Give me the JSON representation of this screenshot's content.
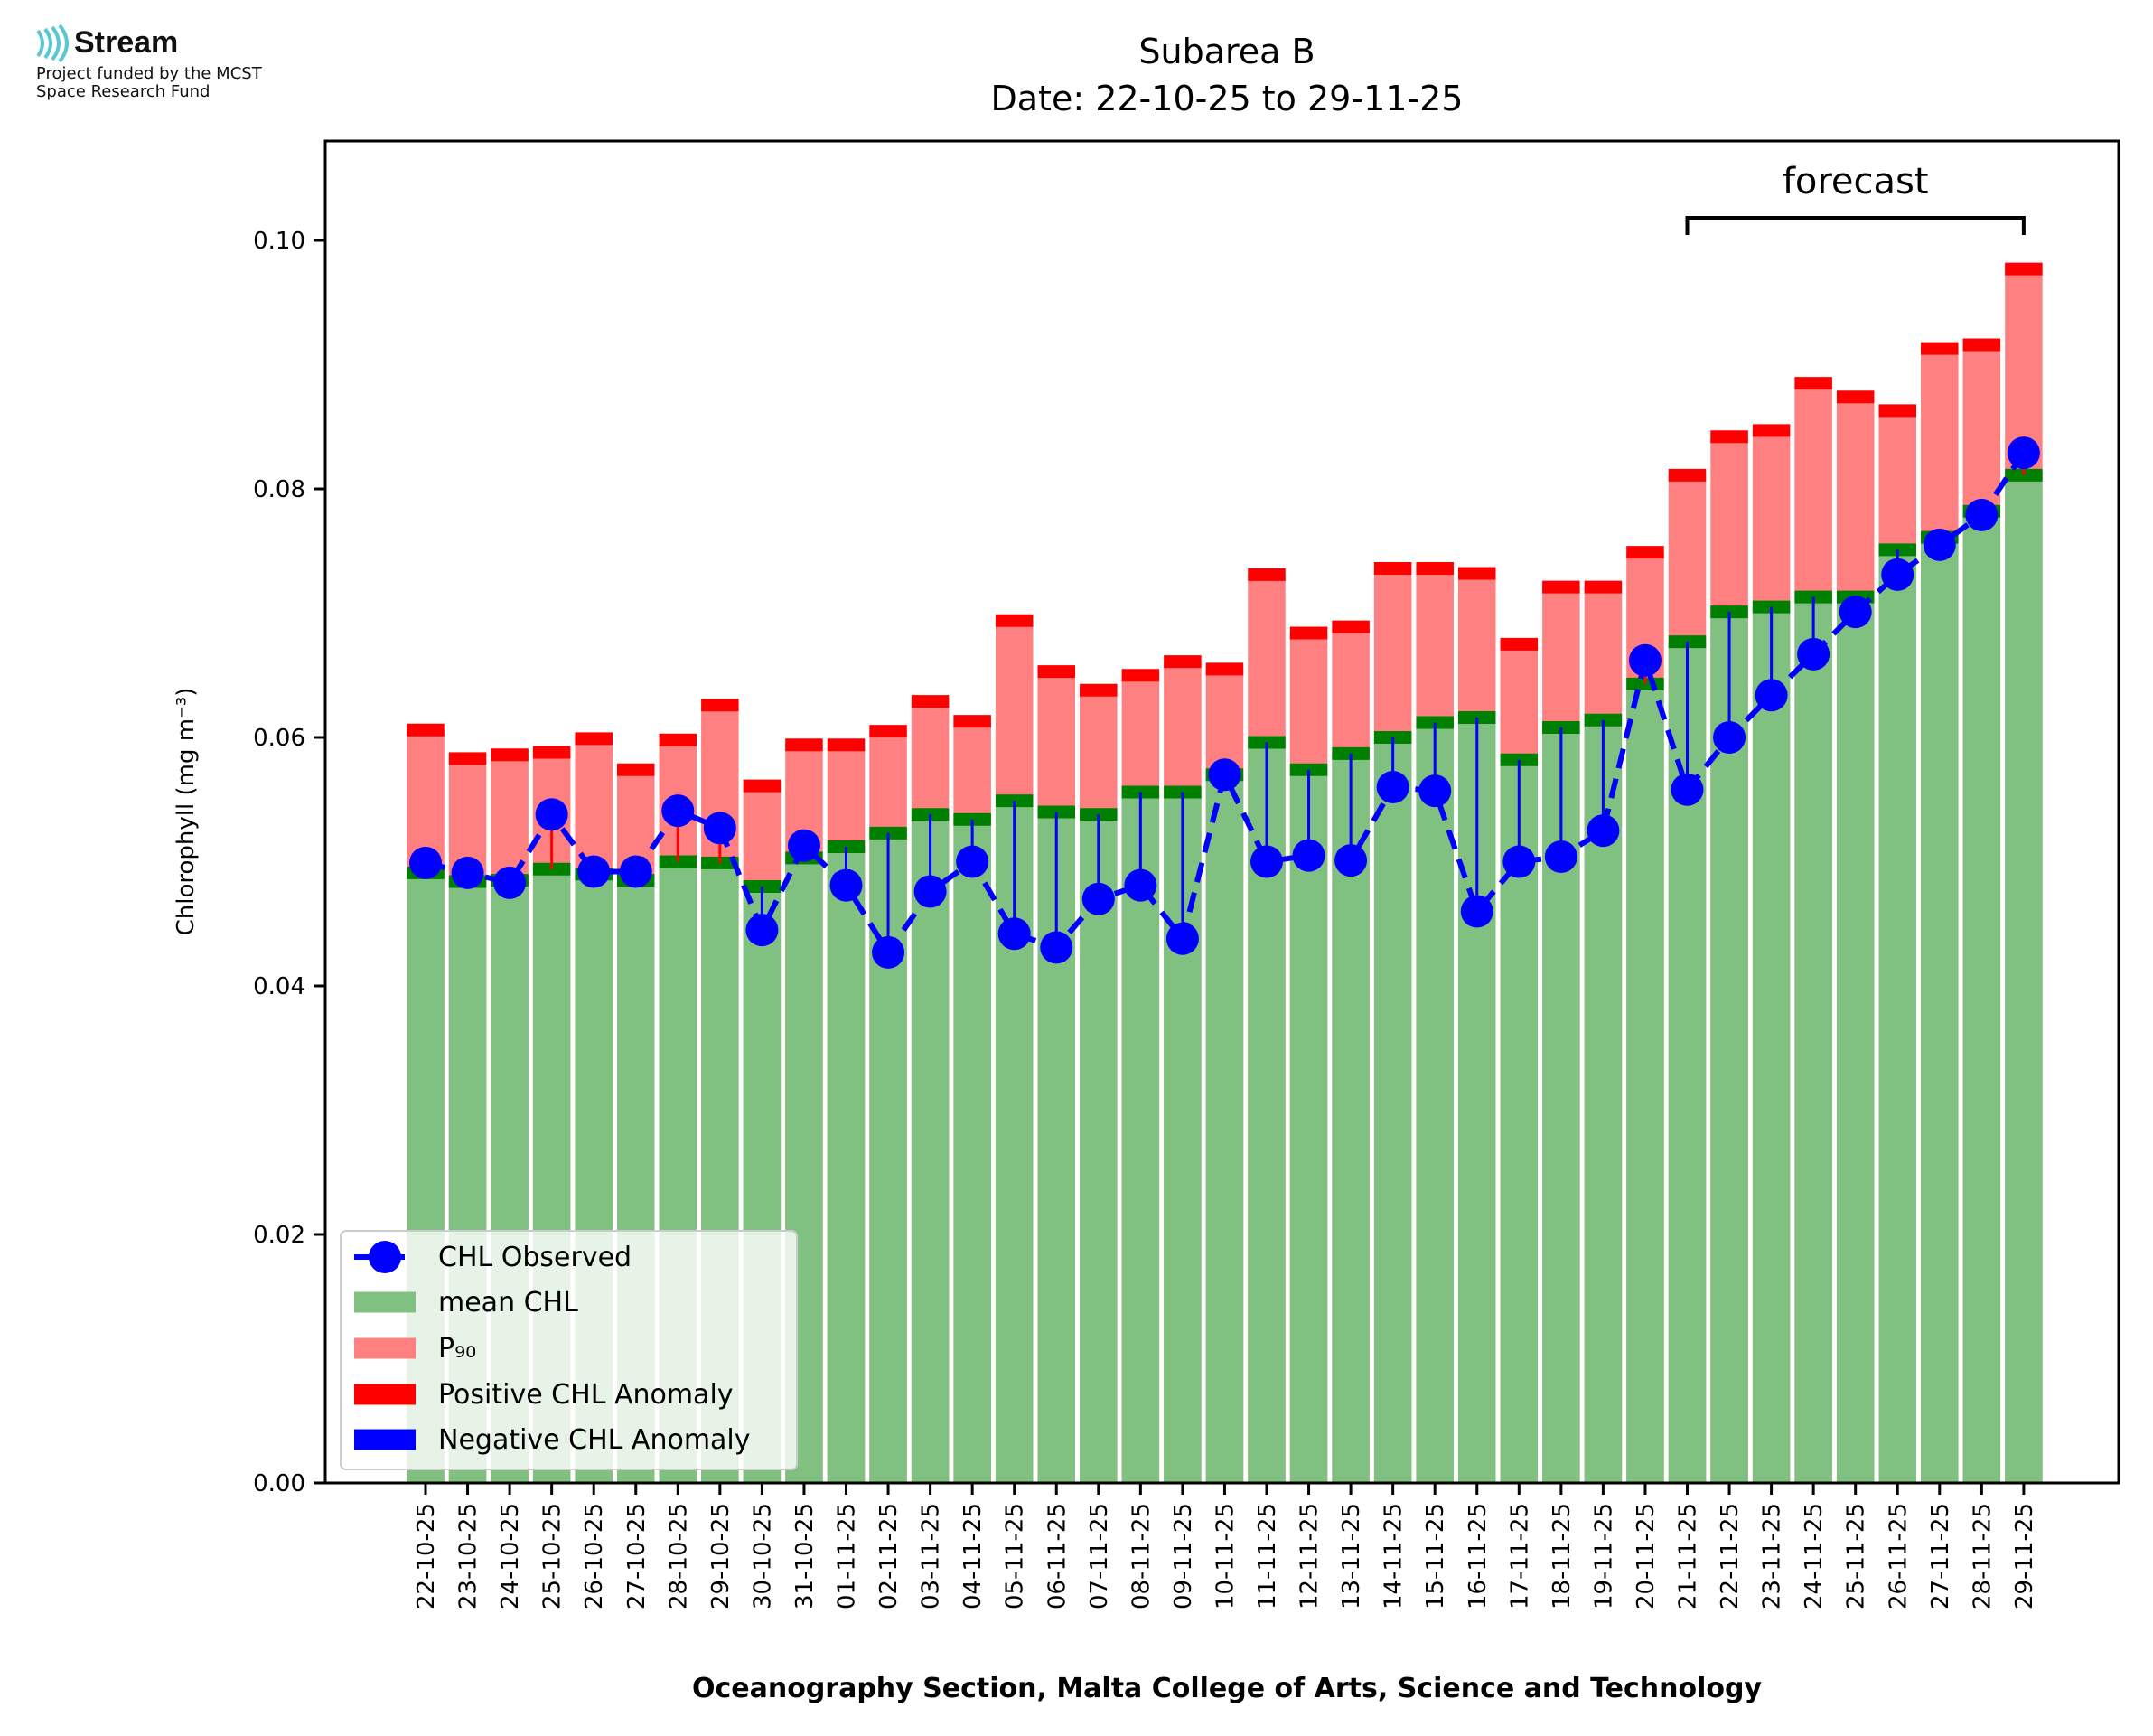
{
  "logo": {
    "name": "Stream",
    "line1": "Project funded by the MCST",
    "line2": "Space Research Fund"
  },
  "colors": {
    "mean": "#80c080",
    "p90": "#ff8080",
    "positive": "#ff0000",
    "negative": "#0000ff",
    "mean_edge": "#008000",
    "observed": "#0000ff",
    "logo_accent": "#59c9cf"
  },
  "chart_data": {
    "type": "bar",
    "title": "Subarea B",
    "subtitle": "Date: 22-10-25 to 29-11-25",
    "ylabel": "Chlorophyll (mg m⁻³)",
    "xlabel": "Oceanography Section, Malta College of Arts, Science and Technology",
    "ylim": [
      0,
      0.108
    ],
    "yticks": [
      0.0,
      0.02,
      0.04,
      0.06,
      0.08,
      0.1
    ],
    "ytick_labels": [
      "0.00",
      "0.02",
      "0.04",
      "0.06",
      "0.08",
      "0.10"
    ],
    "legend_position": "bottom-left",
    "categories": [
      "22-10-25",
      "23-10-25",
      "24-10-25",
      "25-10-25",
      "26-10-25",
      "27-10-25",
      "28-10-25",
      "29-10-25",
      "30-10-25",
      "31-10-25",
      "01-11-25",
      "02-11-25",
      "03-11-25",
      "04-11-25",
      "05-11-25",
      "06-11-25",
      "07-11-25",
      "08-11-25",
      "09-11-25",
      "10-11-25",
      "11-11-25",
      "12-11-25",
      "13-11-25",
      "14-11-25",
      "15-11-25",
      "16-11-25",
      "17-11-25",
      "18-11-25",
      "19-11-25",
      "20-11-25",
      "21-11-25",
      "22-11-25",
      "23-11-25",
      "24-11-25",
      "25-11-25",
      "26-11-25",
      "27-11-25",
      "28-11-25",
      "29-11-25"
    ],
    "series": [
      {
        "name": "CHL Observed",
        "type": "line",
        "values": [
          0.0499,
          0.0491,
          0.0483,
          0.0538,
          0.0492,
          0.0492,
          0.0541,
          0.0527,
          0.0445,
          0.0513,
          0.0481,
          0.0427,
          0.0476,
          0.05,
          0.0442,
          0.0431,
          0.047,
          0.0481,
          0.0438,
          0.057,
          0.05,
          0.0505,
          0.0501,
          0.056,
          0.0557,
          0.046,
          0.05,
          0.0504,
          0.0525,
          0.0662,
          0.0558,
          0.06,
          0.0634,
          0.0667,
          0.0701,
          0.0731,
          0.0755,
          0.0779,
          0.0829
        ]
      },
      {
        "name": "mean CHL",
        "type": "bar",
        "values": [
          0.0491,
          0.0484,
          0.0485,
          0.0494,
          0.049,
          0.0485,
          0.05,
          0.0499,
          0.048,
          0.0503,
          0.0512,
          0.0523,
          0.0538,
          0.0534,
          0.0549,
          0.054,
          0.0538,
          0.0556,
          0.0556,
          0.057,
          0.0596,
          0.0574,
          0.0587,
          0.06,
          0.0612,
          0.0616,
          0.0582,
          0.0608,
          0.0614,
          0.0643,
          0.0677,
          0.0701,
          0.0705,
          0.0713,
          0.0713,
          0.0751,
          0.0761,
          0.0782,
          0.0811
        ]
      },
      {
        "name": "P₉₀",
        "type": "bar",
        "values": [
          0.0606,
          0.0583,
          0.0586,
          0.0588,
          0.0599,
          0.0574,
          0.0598,
          0.0626,
          0.0561,
          0.0594,
          0.0594,
          0.0605,
          0.0629,
          0.0613,
          0.0694,
          0.0653,
          0.0638,
          0.065,
          0.0661,
          0.0655,
          0.0731,
          0.0684,
          0.0689,
          0.0736,
          0.0736,
          0.0732,
          0.0675,
          0.0721,
          0.0721,
          0.0749,
          0.0811,
          0.0842,
          0.0847,
          0.0885,
          0.0874,
          0.0863,
          0.0913,
          0.0916,
          0.0977
        ]
      },
      {
        "name": "Positive CHL Anomaly",
        "type": "marker"
      },
      {
        "name": "Negative CHL Anomaly",
        "type": "marker"
      }
    ],
    "annotation": {
      "label": "forecast",
      "from": "21-11-25",
      "to": "29-11-25"
    }
  }
}
